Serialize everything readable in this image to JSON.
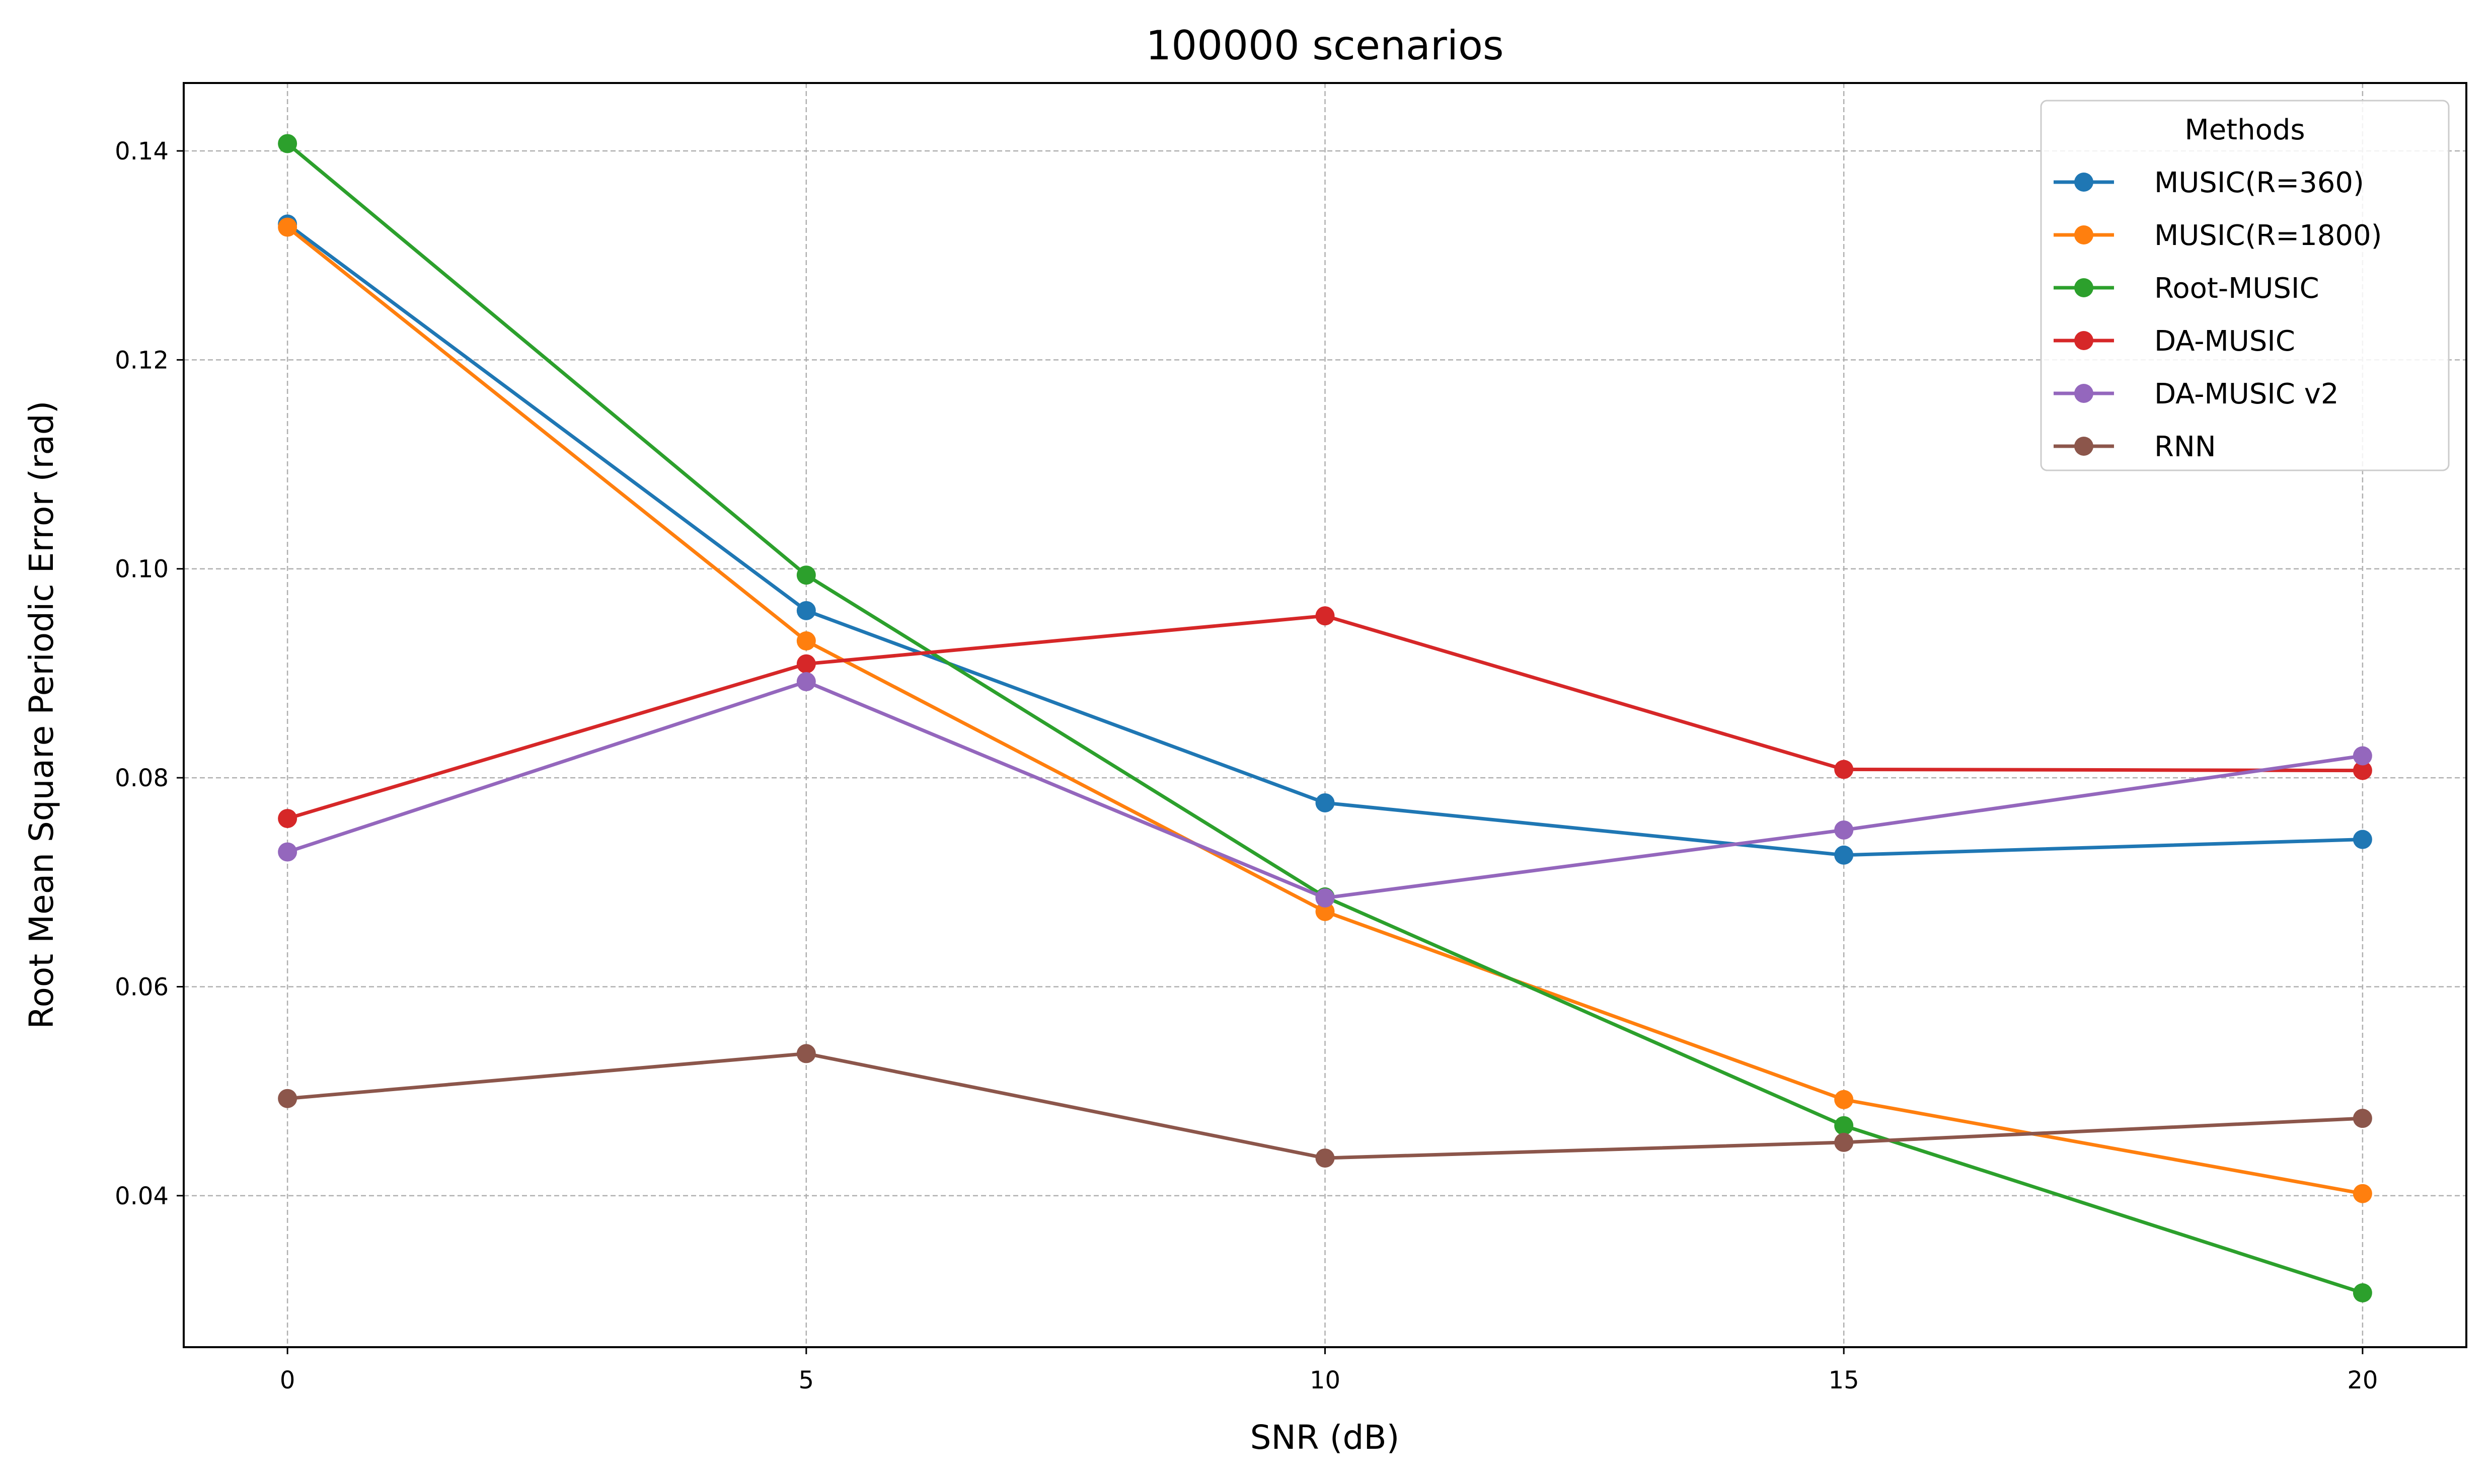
{
  "chart_data": {
    "type": "line",
    "title": "100000 scenarios",
    "xlabel": "SNR (dB)",
    "ylabel": "Root Mean Square Periodic Error (rad)",
    "x": [
      0,
      5,
      10,
      15,
      20
    ],
    "xticks": [
      "0",
      "5",
      "10",
      "15",
      "20"
    ],
    "yticks": [
      "0.04",
      "0.06",
      "0.08",
      "0.10",
      "0.12",
      "0.14"
    ],
    "xlim": [
      -1,
      21
    ],
    "ylim": [
      0.0255,
      0.1465
    ],
    "grid": true,
    "legend": {
      "title": "Methods",
      "placement": "top-right"
    },
    "series": [
      {
        "name": "MUSIC(R=360)",
        "color": "#1f77b4",
        "values": [
          0.133,
          0.096,
          0.0776,
          0.0726,
          0.0741
        ]
      },
      {
        "name": "MUSIC(R=1800)",
        "color": "#ff7f0e",
        "values": [
          0.1327,
          0.0931,
          0.0672,
          0.0492,
          0.0402
        ]
      },
      {
        "name": "Root-MUSIC",
        "color": "#2ca02c",
        "values": [
          0.1407,
          0.0994,
          0.0686,
          0.0467,
          0.0307
        ]
      },
      {
        "name": "DA-MUSIC",
        "color": "#d62728",
        "values": [
          0.0761,
          0.0909,
          0.0955,
          0.0808,
          0.0807
        ]
      },
      {
        "name": "DA-MUSIC v2",
        "color": "#9467bd",
        "values": [
          0.0729,
          0.0892,
          0.0685,
          0.075,
          0.0821
        ]
      },
      {
        "name": "RNN",
        "color": "#8c564b",
        "values": [
          0.0493,
          0.0536,
          0.0436,
          0.0451,
          0.0474
        ]
      }
    ]
  }
}
